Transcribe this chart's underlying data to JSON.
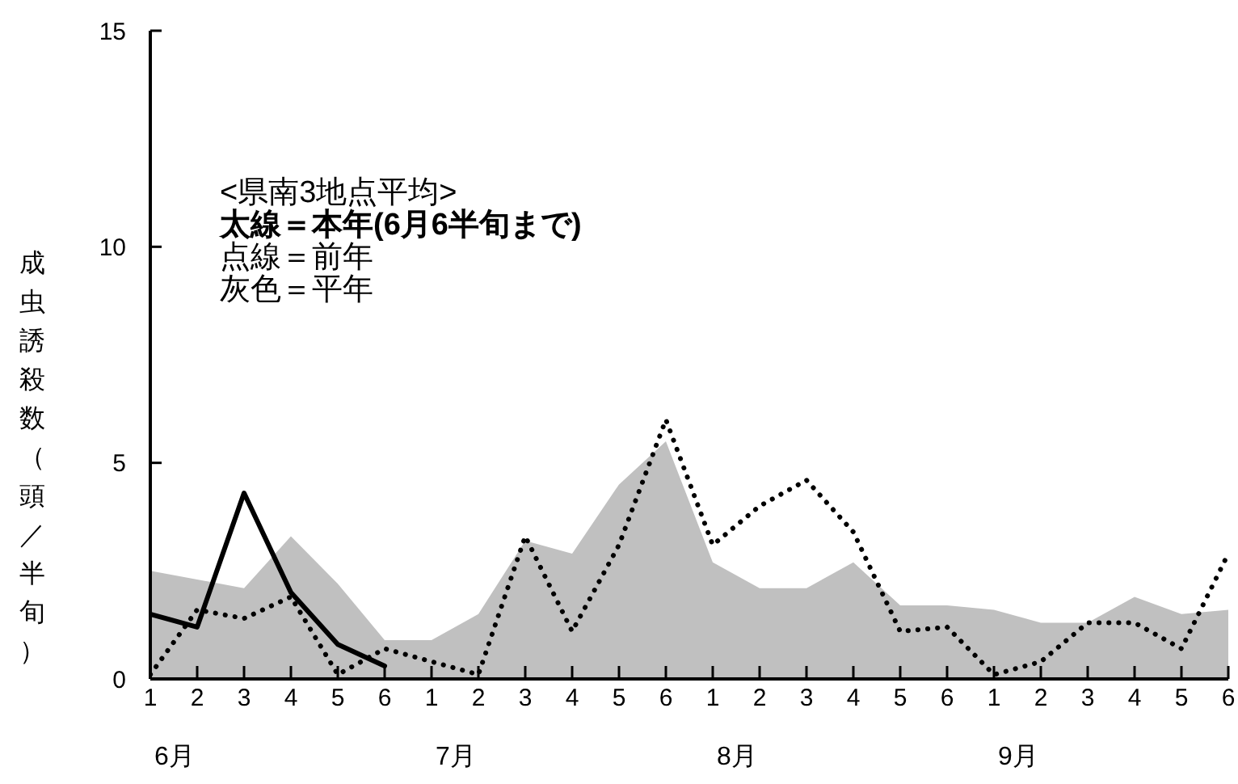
{
  "chart_data": {
    "type": "line",
    "title": "<県南3地点平均>",
    "ylabel": "成虫誘殺数（頭／半旬）",
    "categories": [
      "1",
      "2",
      "3",
      "4",
      "5",
      "6",
      "1",
      "2",
      "3",
      "4",
      "5",
      "6",
      "1",
      "2",
      "3",
      "4",
      "5",
      "6",
      "1",
      "2",
      "3",
      "4",
      "5",
      "6"
    ],
    "series": [
      {
        "type": "area",
        "color": "#c0c0c0",
        "values": [
          2.5,
          2.3,
          2.1,
          3.3,
          2.2,
          0.9,
          0.9,
          1.5,
          3.2,
          2.9,
          4.5,
          5.5,
          2.7,
          2.1,
          2.1,
          2.7,
          1.7,
          1.7,
          1.6,
          1.3,
          1.3,
          1.9,
          1.5,
          1.6
        ]
      },
      {
        "color": "#000000",
        "line_style": "dotted",
        "values": [
          0.1,
          1.6,
          1.4,
          1.9,
          0.1,
          0.7,
          0.4,
          0.1,
          3.3,
          1.1,
          3.1,
          6.0,
          3.1,
          4.0,
          4.6,
          3.4,
          1.1,
          1.2,
          0.1,
          0.4,
          1.3,
          1.3,
          0.7,
          2.9
        ]
      },
      {
        "color": "#000000",
        "line_style": "solid",
        "values": [
          1.5,
          1.2,
          4.3,
          2.0,
          0.8,
          0.3,
          null,
          null,
          null,
          null,
          null,
          null,
          null,
          null,
          null,
          null,
          null,
          null,
          null,
          null,
          null,
          null,
          null,
          null
        ]
      }
    ],
    "ylim": [
      0,
      15
    ],
    "yticks": [
      0,
      5,
      10,
      15
    ],
    "annotations": [
      "太線＝本年(6月6半旬まで)",
      "点線＝前年",
      "灰色＝平年",
      "6月",
      "7月",
      "8月",
      "9月"
    ]
  }
}
